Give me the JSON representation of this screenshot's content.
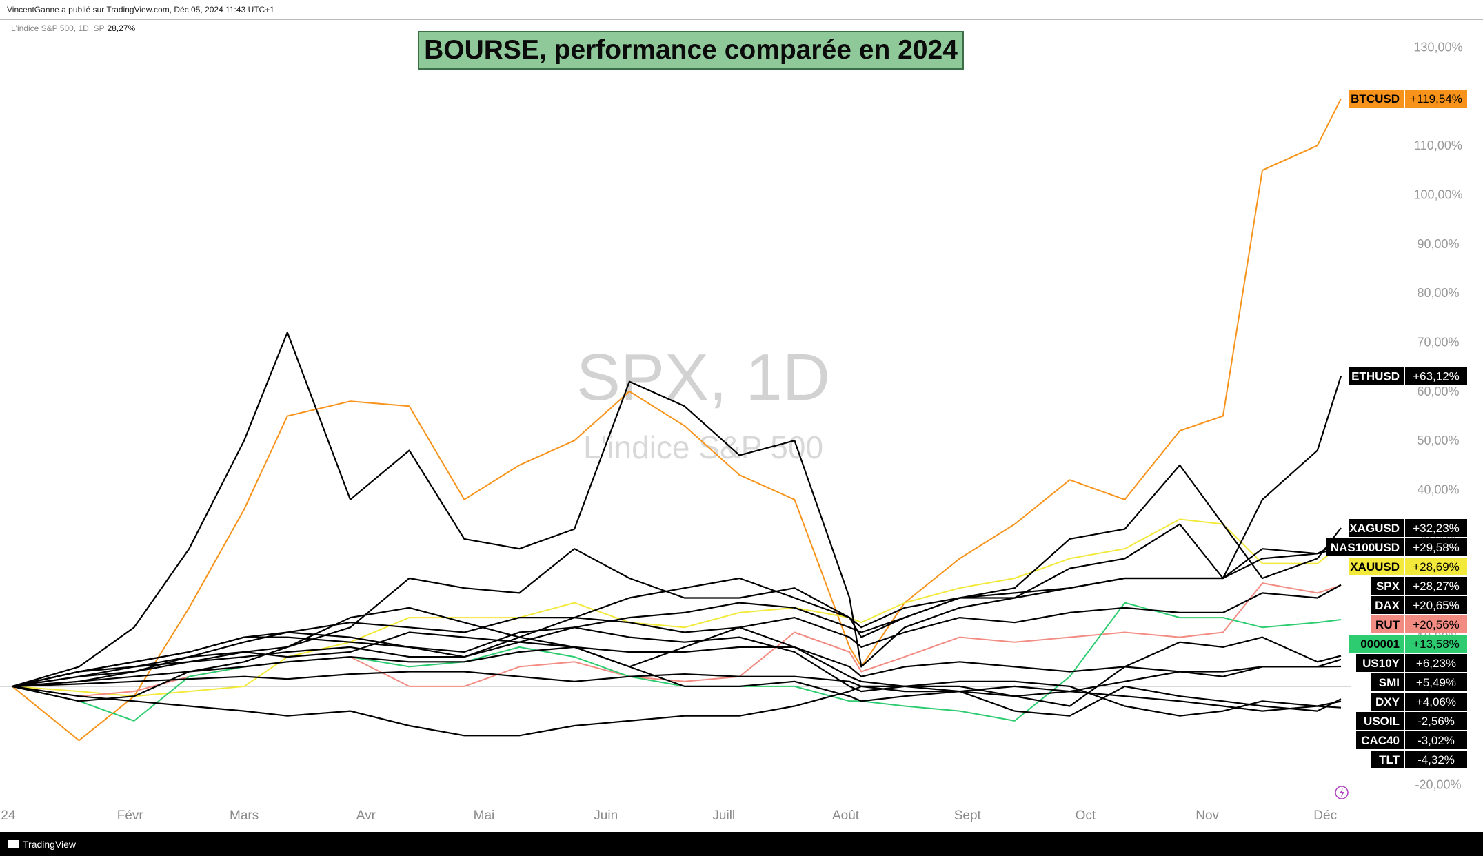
{
  "header": {
    "publisher_line": "VincentGanne a publié sur TradingView.com, Déc 05, 2024 11:43 UTC+1"
  },
  "legend": {
    "label": "L'indice S&P 500, 1D, SP",
    "value": "28,27%"
  },
  "title": "BOURSE, performance comparée en 2024",
  "watermark": {
    "symbol": "SPX, 1D",
    "name": "L'indice S&P 500"
  },
  "footer": {
    "brand": "TradingView"
  },
  "icons": {
    "flash": "flash-icon",
    "logo": "tradingview-logo-icon"
  },
  "chart_data": {
    "type": "line",
    "title": "BOURSE, performance comparée en 2024",
    "x_ticks": [
      "24",
      "Févr",
      "Mars",
      "Avr",
      "Mai",
      "Juin",
      "Juill",
      "Août",
      "Sept",
      "Oct",
      "Nov",
      "Déc"
    ],
    "y_ticks": [
      "130,00%",
      "120,00%",
      "110,00%",
      "100,00%",
      "90,00%",
      "80,00%",
      "70,00%",
      "60,00%",
      "50,00%",
      "40,00%",
      "30,00%",
      "20,00%",
      "10,00%",
      "0,00%",
      "-10,00%",
      "-20,00%"
    ],
    "y_tick_values": [
      130,
      120,
      110,
      100,
      90,
      80,
      70,
      60,
      50,
      40,
      30,
      20,
      10,
      0,
      -10,
      -20
    ],
    "ylim": [
      -23,
      134
    ],
    "unit": "%",
    "grid": false,
    "x": [
      "2024-01-02",
      "2024-01-19",
      "2024-02-02",
      "2024-02-16",
      "2024-03-01",
      "2024-03-12",
      "2024-03-28",
      "2024-04-12",
      "2024-04-26",
      "2024-05-10",
      "2024-05-24",
      "2024-06-07",
      "2024-06-21",
      "2024-07-05",
      "2024-07-19",
      "2024-08-02",
      "2024-08-05",
      "2024-08-16",
      "2024-08-30",
      "2024-09-13",
      "2024-09-27",
      "2024-10-11",
      "2024-10-25",
      "2024-11-05",
      "2024-11-15",
      "2024-11-29",
      "2024-12-05"
    ],
    "series": [
      {
        "name": "BTCUSD",
        "label": "+119,54%",
        "color": "#f7931a",
        "label_bg": "#f7931a",
        "label_fg": "#000000",
        "values": [
          0,
          -11,
          -2,
          16,
          36,
          55,
          58,
          57,
          38,
          45,
          50,
          60,
          53,
          43,
          38,
          8,
          4,
          17,
          26,
          33,
          42,
          38,
          52,
          55,
          105,
          110,
          119.54
        ]
      },
      {
        "name": "ETHUSD",
        "label": "+63,12%",
        "color": "#000000",
        "label_bg": "#000000",
        "label_fg": "#ffffff",
        "values": [
          0,
          4,
          12,
          28,
          50,
          72,
          38,
          48,
          30,
          28,
          32,
          62,
          57,
          47,
          50,
          18,
          4,
          12,
          16,
          18,
          24,
          26,
          33,
          22,
          38,
          48,
          63.12
        ]
      },
      {
        "name": "XAGUSD",
        "label": "+32,23%",
        "color": "#000000",
        "label_bg": "#000000",
        "label_fg": "#ffffff",
        "values": [
          0,
          -3,
          -2,
          3,
          5,
          8,
          12,
          22,
          20,
          19,
          28,
          22,
          18,
          18,
          20,
          14,
          10,
          14,
          18,
          20,
          30,
          32,
          45,
          33,
          22,
          26,
          32.23
        ]
      },
      {
        "name": "NAS100USD",
        "label": "+29,58%",
        "color": "#000000",
        "label_bg": "#000000",
        "label_fg": "#ffffff",
        "values": [
          0,
          3,
          5,
          7,
          10,
          10,
          9,
          8,
          6,
          10,
          14,
          18,
          20,
          22,
          18,
          14,
          12,
          16,
          18,
          18,
          20,
          22,
          22,
          22,
          28,
          27,
          29.58
        ]
      },
      {
        "name": "XAUUSD",
        "label": "+28,69%",
        "color": "#f2e93a",
        "label_bg": "#f2e93a",
        "label_fg": "#000000",
        "values": [
          0,
          -1,
          -2,
          -1,
          0,
          6,
          9,
          14,
          14,
          14,
          17,
          13,
          12,
          15,
          16,
          14,
          13,
          17,
          20,
          22,
          26,
          28,
          34,
          33,
          25,
          25,
          28.69
        ]
      },
      {
        "name": "SPX",
        "label": "+28,27%",
        "color": "#000000",
        "label_bg": "#000000",
        "label_fg": "#ffffff",
        "values": [
          0,
          3,
          5,
          7,
          10,
          11,
          10,
          8,
          7,
          11,
          12,
          14,
          15,
          17,
          16,
          12,
          11,
          14,
          18,
          19,
          20,
          22,
          22,
          22,
          26,
          27,
          28.27
        ]
      },
      {
        "name": "DAX",
        "label": "+20,65%",
        "color": "#000000",
        "label_bg": "#000000",
        "label_fg": "#ffffff",
        "values": [
          0,
          2,
          3,
          6,
          9,
          11,
          13,
          12,
          11,
          14,
          14,
          13,
          11,
          12,
          14,
          10,
          8,
          11,
          14,
          13,
          15,
          16,
          15,
          15,
          19,
          18,
          20.65
        ]
      },
      {
        "name": "RUT",
        "label": "+20,56%",
        "color": "#f28b82",
        "label_bg": "#f28b82",
        "label_fg": "#000000",
        "values": [
          0,
          -2,
          -1,
          2,
          4,
          5,
          6,
          0,
          0,
          4,
          5,
          2,
          1,
          2,
          11,
          7,
          3,
          6,
          10,
          9,
          10,
          11,
          10,
          11,
          21,
          19,
          20.56
        ]
      },
      {
        "name": "000001",
        "label": "+13,58%",
        "color": "#2ecc71",
        "label_bg": "#2ecc71",
        "label_fg": "#000000",
        "values": [
          0,
          -3,
          -7,
          2,
          4,
          5,
          6,
          4,
          5,
          8,
          6,
          2,
          0,
          0,
          0,
          -3,
          -3,
          -4,
          -5,
          -7,
          2,
          17,
          14,
          14,
          12,
          13,
          13.58
        ]
      },
      {
        "name": "US10Y",
        "label": "+6,23%",
        "color": "#000000",
        "label_bg": "#000000",
        "label_fg": "#ffffff",
        "values": [
          0,
          3,
          4,
          6,
          7,
          6,
          7,
          11,
          10,
          9,
          12,
          10,
          9,
          10,
          7,
          0,
          -1,
          0,
          0,
          -2,
          -4,
          4,
          9,
          8,
          10,
          5,
          6.23
        ]
      },
      {
        "name": "SMI",
        "label": "+5,49%",
        "color": "#000000",
        "label_bg": "#000000",
        "label_fg": "#ffffff",
        "values": [
          0,
          1,
          2,
          3,
          4,
          5,
          6,
          5,
          5,
          7,
          8,
          7,
          7,
          8,
          8,
          4,
          2,
          4,
          5,
          4,
          3,
          4,
          3,
          3,
          4,
          4,
          5.49
        ]
      },
      {
        "name": "DXY",
        "label": "+4,06%",
        "color": "#000000",
        "label_bg": "#000000",
        "label_fg": "#ffffff",
        "values": [
          0,
          0.5,
          1,
          1.5,
          2,
          1.5,
          2.5,
          3,
          3,
          2,
          1,
          2,
          2.5,
          2,
          2,
          1,
          0,
          -1,
          -1,
          0,
          -1,
          1,
          3,
          2,
          4,
          4,
          4.06
        ]
      },
      {
        "name": "USOIL",
        "label": "-2,56%",
        "color": "#000000",
        "label_bg": "#000000",
        "label_fg": "#ffffff",
        "values": [
          0,
          2,
          4,
          5,
          7,
          8,
          14,
          16,
          13,
          10,
          8,
          4,
          8,
          12,
          8,
          2,
          1,
          0,
          -1,
          -5,
          -6,
          0,
          -2,
          -3,
          -4,
          -5,
          -2.56
        ]
      },
      {
        "name": "CAC40",
        "label": "-3,02%",
        "color": "#000000",
        "label_bg": "#000000",
        "label_fg": "#ffffff",
        "values": [
          0,
          1,
          3,
          5,
          6,
          7,
          8,
          6,
          6,
          9,
          8,
          4,
          0,
          0,
          1,
          -2,
          -3,
          -2,
          -1,
          -2,
          -1,
          -2,
          -3,
          -4,
          -5,
          -4,
          -3.02
        ]
      },
      {
        "name": "TLT",
        "label": "-4,32%",
        "color": "#000000",
        "label_bg": "#000000",
        "label_fg": "#ffffff",
        "values": [
          0,
          -2,
          -3,
          -4,
          -5,
          -6,
          -5,
          -8,
          -10,
          -10,
          -8,
          -7,
          -6,
          -6,
          -4,
          -1,
          0,
          0,
          1,
          1,
          0,
          -4,
          -6,
          -5,
          -3,
          -4,
          -4.32
        ]
      }
    ]
  }
}
